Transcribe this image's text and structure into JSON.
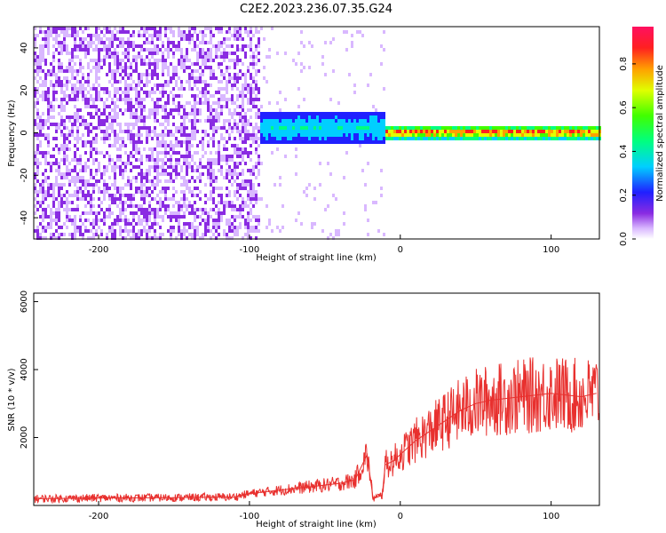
{
  "title": "C2E2.2023.236.07.35.G24",
  "chart_data": [
    {
      "type": "heatmap",
      "xlabel": "Height of straight line (km)",
      "ylabel": "Frequency (Hz)",
      "xlim": [
        -243,
        132
      ],
      "ylim": [
        -50,
        50
      ],
      "xticks": [
        -200,
        -100,
        0,
        100
      ],
      "yticks": [
        -40,
        -20,
        0,
        20,
        40
      ],
      "colorbar": {
        "label": "Normalized spectral amplitude",
        "range": [
          0,
          0.97
        ],
        "ticks": [
          0.0,
          0.2,
          0.4,
          0.6,
          0.8
        ]
      },
      "regions": [
        {
          "x_range": [
            -243,
            -93
          ],
          "description_value": "broadband noise, amplitude ~0.05-0.2 across all frequencies"
        },
        {
          "x_range": [
            -93,
            -10
          ],
          "freq_center_hz": 3,
          "freq_halfwidth_hz": 8,
          "amplitude": 0.35
        },
        {
          "x_range": [
            -10,
            132
          ],
          "freq_center_hz": 1,
          "freq_halfwidth_hz": 3,
          "amplitude": 0.9
        }
      ],
      "grid": false
    },
    {
      "type": "line",
      "xlabel": "Height of straight line (km)",
      "ylabel": "SNR (10 * v/v)",
      "xlim": [
        -243,
        132
      ],
      "ylim": [
        0,
        6250
      ],
      "xticks": [
        -200,
        -100,
        0,
        100
      ],
      "yticks": [
        2000,
        4000,
        6000
      ],
      "x": [
        -240,
        -200,
        -150,
        -110,
        -100,
        -80,
        -60,
        -40,
        -30,
        -22,
        -18,
        -12,
        -10,
        -5,
        0,
        10,
        20,
        30,
        40,
        50,
        60,
        80,
        100,
        120,
        130
      ],
      "y": [
        200,
        220,
        230,
        250,
        350,
        450,
        550,
        650,
        750,
        1500,
        200,
        300,
        1200,
        1300,
        1500,
        1900,
        2200,
        2500,
        2800,
        3000,
        3100,
        3200,
        3300,
        3200,
        3300
      ],
      "color": "#e8302e",
      "grid": false
    }
  ]
}
